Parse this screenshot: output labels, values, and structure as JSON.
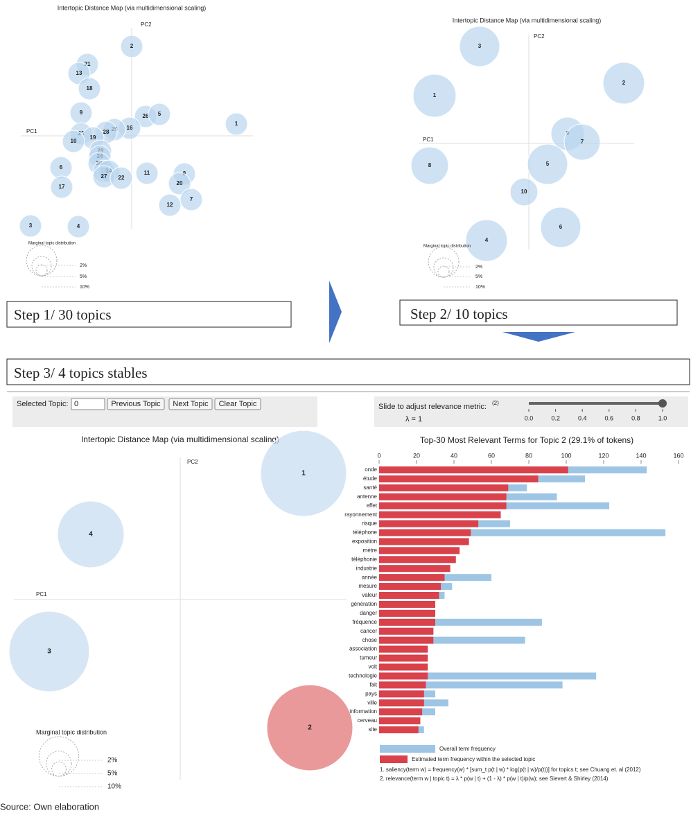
{
  "steps": [
    {
      "label": "Step 1/ 30 topics",
      "map": {
        "title": "Intertopic Distance Map (via multidimensional scaling)",
        "pc1": "PC1",
        "pc2": "PC2",
        "topics": [
          "2",
          "21",
          "13",
          "18",
          "9",
          "26",
          "5",
          "1",
          "16",
          "25",
          "28",
          "23",
          "19",
          "10",
          "29",
          "24",
          "30",
          "15",
          "14",
          "27",
          "22",
          "11",
          "6",
          "8",
          "20",
          "17",
          "7",
          "12",
          "3",
          "4"
        ],
        "marginal": {
          "title": "Marginal topic distribution",
          "labels": [
            "2%",
            "5%",
            "10%"
          ]
        }
      }
    },
    {
      "label": "Step 2/ 10 topics",
      "map": {
        "title": "Intertopic Distance Map (via multidimensional scaling)",
        "pc1": "PC1",
        "pc2": "PC2",
        "topics": [
          "3",
          "2",
          "1",
          "9",
          "7",
          "8",
          "5",
          "10",
          "6",
          "4"
        ],
        "marginal": {
          "title": "Marginal topic distribution",
          "labels": [
            "2%",
            "5%",
            "10%"
          ]
        }
      }
    },
    {
      "label": "Step 3/ 4 topics stables",
      "map": {
        "title": "Intertopic Distance Map (via multidimensional scaling)",
        "pc1": "PC1",
        "pc2": "PC2",
        "topics": [
          {
            "label": "1",
            "color": "#c6dcef"
          },
          {
            "label": "4",
            "color": "#c6dcef"
          },
          {
            "label": "3",
            "color": "#c6dcef"
          },
          {
            "label": "2",
            "color": "#e06d6f"
          }
        ],
        "marginal": {
          "title": "Marginal topic distribution",
          "labels": [
            "2%",
            "5%",
            "10%"
          ]
        }
      }
    }
  ],
  "controls": {
    "selected_label": "Selected Topic:",
    "selected_value": "0",
    "buttons": [
      "Previous Topic",
      "Next Topic",
      "Clear Topic"
    ],
    "relevance_label": "Slide to adjust relevance metric:",
    "relevance_note": "(2)",
    "lambda_label": "λ = 1",
    "lambda": 1,
    "slider_ticks": [
      {
        "value": 0,
        "label": "0.0"
      },
      {
        "value": 0.2,
        "label": "0.2"
      },
      {
        "value": 0.4,
        "label": "0.4"
      },
      {
        "value": 0.6,
        "label": "0.6"
      },
      {
        "value": 0.8,
        "label": "0.8"
      },
      {
        "value": 1,
        "label": "1.0"
      }
    ]
  },
  "chart_data": {
    "type": "bar",
    "orientation": "horizontal",
    "title": "Top-30 Most Relevant Terms for Topic 2 (29.1% of tokens)",
    "categories": [
      "onde",
      "étude",
      "santé",
      "antenne",
      "effet",
      "rayonnement",
      "risque",
      "téléphone",
      "exposition",
      "mètre",
      "téléphonie",
      "industrie",
      "année",
      "mesure",
      "valeur",
      "génération",
      "danger",
      "fréquence",
      "cancer",
      "chose",
      "association",
      "tumeur",
      "volt",
      "technologie",
      "fait",
      "pays",
      "ville",
      "information",
      "cerveau",
      "site"
    ],
    "series": [
      {
        "name": "Overall term frequency",
        "color": "#9fc5e5",
        "values": [
          143,
          110,
          79,
          95,
          123,
          65,
          70,
          153,
          48,
          43,
          41,
          38,
          60,
          39,
          35,
          30,
          30,
          87,
          29,
          78,
          26,
          26,
          26,
          116,
          98,
          30,
          37,
          30,
          22,
          24
        ]
      },
      {
        "name": "Estimated term frequency within the selected topic",
        "color": "#d9414b",
        "values": [
          101,
          85,
          69,
          68,
          68,
          65,
          53,
          49,
          48,
          43,
          41,
          38,
          35,
          33,
          32,
          30,
          30,
          30,
          29,
          29,
          26,
          26,
          26,
          26,
          25,
          24,
          24,
          23,
          22,
          21
        ]
      }
    ],
    "xlim": [
      0,
      160
    ],
    "xticks": [
      0,
      20,
      40,
      60,
      80,
      100,
      120,
      140,
      160
    ],
    "footnotes": [
      "1. saliency(term w) = frequency(w) * [sum_t p(t | w) * log(p(t | w)/p(t))] for topics t; see Chuang et. al (2012)",
      "2. relevance(term w | topic t) = λ * p(w | t) + (1 - λ) * p(w | t)/p(w); see Sievert & Shirley (2014)"
    ]
  },
  "source": "Source: Own elaboration"
}
